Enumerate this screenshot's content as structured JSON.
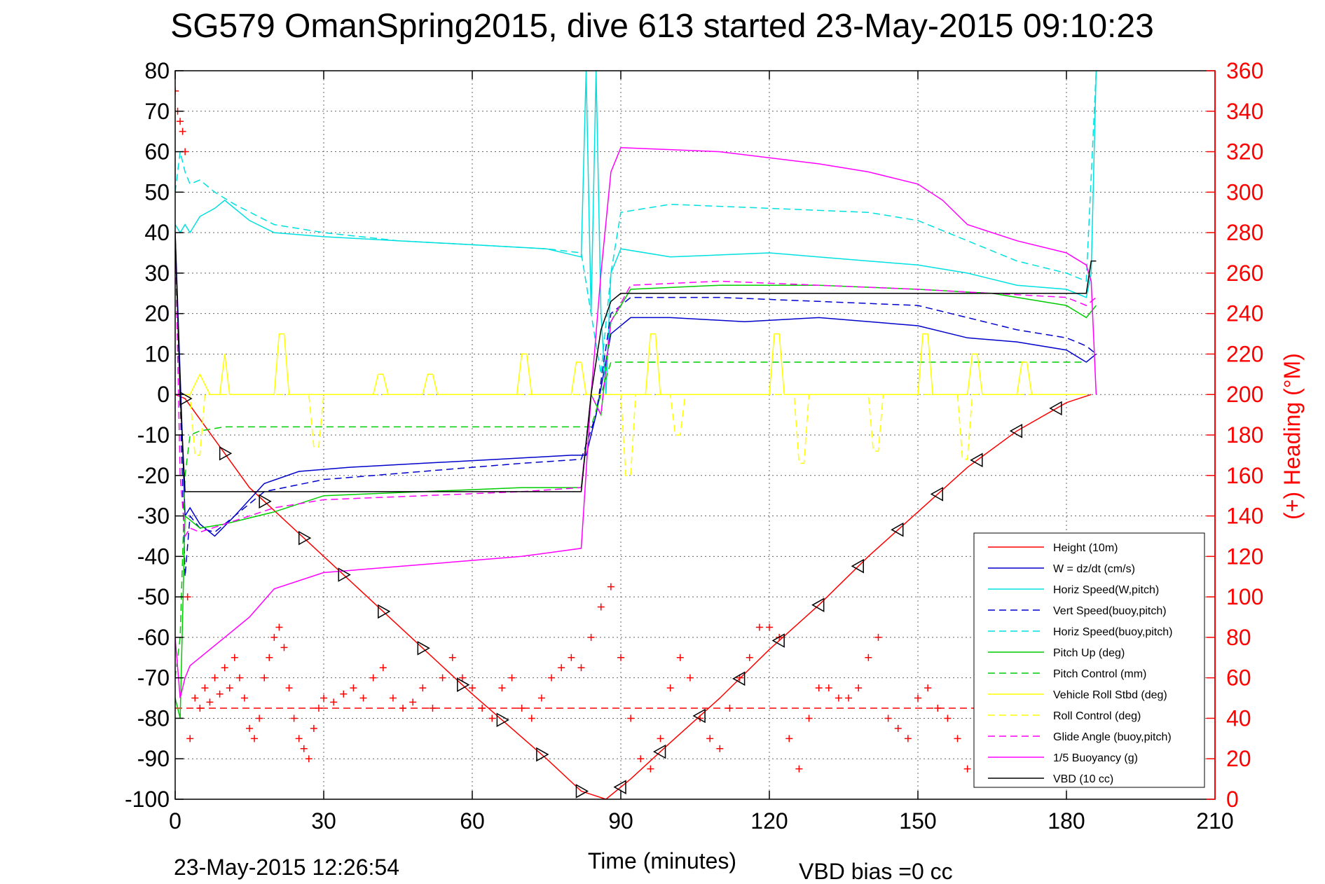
{
  "chart_data": {
    "type": "line",
    "title": "SG579 OmanSpring2015, dive 613 started 23-May-2015 09:10:23",
    "xlabel": "Time (minutes)",
    "ylabel": "",
    "y2label": "(+) Heading (°M)",
    "xlim": [
      0,
      210
    ],
    "ylim": [
      -100,
      80
    ],
    "y2lim": [
      0,
      360
    ],
    "x_ticks": [
      "0",
      "30",
      "60",
      "90",
      "120",
      "150",
      "180",
      "210"
    ],
    "y_ticks": [
      "80",
      "70",
      "60",
      "50",
      "40",
      "30",
      "20",
      "10",
      "0",
      "-10",
      "-20",
      "-30",
      "-40",
      "-50",
      "-60",
      "-70",
      "-80",
      "-90",
      "-100"
    ],
    "y2_ticks": [
      "360",
      "340",
      "320",
      "300",
      "280",
      "260",
      "240",
      "220",
      "200",
      "180",
      "160",
      "140",
      "120",
      "100",
      "80",
      "60",
      "40",
      "20",
      "0"
    ],
    "grid": true,
    "legend_position": "bottom-right",
    "footer_left": "23-May-2015 12:26:54",
    "footer_right": "VBD bias =0 cc",
    "colors": {
      "height": "#ff0000",
      "w": "#0000cc",
      "horiz_speed": "#00e0e0",
      "pitch": "#00cc00",
      "roll": "#ffff00",
      "glide": "#ff00ff",
      "buoyancy": "#ff00ff",
      "vbd": "#000000",
      "heading": "#ff0000"
    },
    "series": [
      {
        "name": "Height (10m)",
        "color": "#ff0000",
        "dash": "",
        "x": [
          0,
          2,
          15,
          30,
          45,
          60,
          75,
          82,
          87,
          92,
          100,
          110,
          120,
          130,
          140,
          150,
          160,
          170,
          180,
          185
        ],
        "y": [
          0,
          -1,
          -23,
          -40,
          -57,
          -74,
          -90,
          -98,
          -100,
          -95,
          -86,
          -75,
          -63,
          -52,
          -40,
          -29,
          -18,
          -9,
          -2,
          0
        ]
      },
      {
        "name": "W = dz/dt (cm/s)",
        "color": "#0000cc",
        "dash": "",
        "x": [
          0,
          1,
          2,
          3,
          5,
          8,
          12,
          18,
          25,
          35,
          50,
          65,
          80,
          83,
          85,
          88,
          92,
          100,
          115,
          130,
          150,
          160,
          170,
          180,
          184,
          186
        ],
        "y": [
          40,
          5,
          -30,
          -28,
          -32,
          -35,
          -30,
          -22,
          -19,
          -18,
          -17,
          -16,
          -15,
          -15,
          -5,
          15,
          19,
          19,
          18,
          19,
          17,
          14,
          13,
          11,
          8,
          10
        ]
      },
      {
        "name": "Horiz Speed(W,pitch)",
        "color": "#00e0e0",
        "dash": "",
        "x": [
          0,
          1,
          2,
          3,
          5,
          8,
          10,
          15,
          20,
          30,
          45,
          60,
          75,
          82,
          83,
          84,
          85,
          86,
          87,
          88,
          90,
          100,
          120,
          140,
          150,
          160,
          170,
          180,
          184,
          185,
          186
        ],
        "y": [
          42,
          40,
          42,
          40,
          44,
          46,
          48,
          43,
          40,
          39,
          38,
          37,
          36,
          34,
          80,
          20,
          80,
          20,
          0,
          30,
          36,
          34,
          35,
          33,
          32,
          30,
          27,
          26,
          24,
          30,
          80
        ]
      },
      {
        "name": "Vert Speed(buoy,pitch)",
        "color": "#0000cc",
        "dash": "10,6",
        "x": [
          0,
          1,
          2,
          3,
          5,
          8,
          12,
          18,
          30,
          50,
          70,
          82,
          85,
          88,
          92,
          110,
          130,
          150,
          160,
          170,
          180,
          184,
          186
        ],
        "y": [
          40,
          0,
          -45,
          -30,
          -33,
          -34,
          -30,
          -24,
          -21,
          -19,
          -17,
          -16,
          -5,
          20,
          24,
          24,
          23,
          22,
          19,
          16,
          14,
          12,
          10
        ]
      },
      {
        "name": "Horiz Speed(buoy,pitch)",
        "color": "#00e0e0",
        "dash": "10,6",
        "x": [
          0,
          1,
          2,
          3,
          5,
          8,
          12,
          20,
          30,
          45,
          60,
          75,
          82,
          84,
          86,
          88,
          90,
          100,
          120,
          140,
          150,
          160,
          170,
          180,
          184,
          186
        ],
        "y": [
          50,
          60,
          55,
          52,
          53,
          50,
          47,
          42,
          40,
          38,
          37,
          36,
          35,
          20,
          5,
          30,
          45,
          47,
          46,
          45,
          43,
          38,
          33,
          30,
          28,
          80
        ]
      },
      {
        "name": "Pitch Up (deg)",
        "color": "#00cc00",
        "dash": "",
        "x": [
          0,
          1,
          2,
          3,
          5,
          10,
          20,
          30,
          50,
          70,
          82,
          84,
          86,
          88,
          92,
          110,
          130,
          150,
          165,
          180,
          184,
          186
        ],
        "y": [
          -75,
          -80,
          -30,
          -31,
          -33,
          -32,
          -29,
          -25,
          -24,
          -23,
          -23,
          0,
          -5,
          18,
          26,
          27,
          27,
          26,
          25,
          22,
          19,
          22
        ]
      },
      {
        "name": "Pitch Control (mm)",
        "color": "#00cc00",
        "dash": "10,6",
        "x": [
          0,
          1,
          2,
          3,
          5,
          10,
          40,
          82,
          84,
          86,
          88,
          89,
          90,
          150,
          182,
          184
        ],
        "y": [
          -70,
          -60,
          -20,
          -10,
          -9,
          -8,
          -8,
          -8,
          -8,
          0,
          8,
          8,
          8,
          8,
          8,
          8
        ]
      },
      {
        "name": "Vehicle Roll Stbd (deg)",
        "color": "#ffff00",
        "dash": "",
        "x": [
          0,
          3,
          5,
          7,
          9,
          10,
          11,
          12,
          20,
          21,
          22,
          23,
          24,
          40,
          41,
          42,
          43,
          50,
          51,
          52,
          53,
          69,
          70,
          71,
          72,
          80,
          81,
          82,
          83,
          90,
          95,
          96,
          97,
          98,
          120,
          121,
          122,
          123,
          150,
          151,
          152,
          153,
          160,
          161,
          162,
          163,
          170,
          171,
          172,
          173,
          180,
          184
        ],
        "y": [
          0,
          0,
          5,
          0,
          0,
          10,
          0,
          0,
          0,
          15,
          15,
          0,
          0,
          0,
          5,
          5,
          0,
          0,
          5,
          5,
          0,
          0,
          10,
          10,
          0,
          0,
          8,
          8,
          0,
          0,
          0,
          15,
          15,
          0,
          0,
          15,
          15,
          0,
          0,
          15,
          15,
          0,
          0,
          10,
          10,
          0,
          0,
          8,
          8,
          0,
          0,
          0
        ]
      },
      {
        "name": "Roll Control (deg)",
        "color": "#ffff00",
        "dash": "10,6",
        "x": [
          0,
          3,
          4,
          5,
          6,
          27,
          28,
          29,
          30,
          90,
          91,
          92,
          93,
          100,
          101,
          102,
          103,
          125,
          126,
          127,
          128,
          140,
          141,
          142,
          143,
          158,
          159,
          160,
          161,
          170,
          184
        ],
        "y": [
          0,
          0,
          -15,
          -15,
          0,
          0,
          -13,
          -13,
          0,
          0,
          -20,
          -20,
          0,
          0,
          -10,
          -10,
          0,
          0,
          -17,
          -17,
          0,
          0,
          -14,
          -14,
          0,
          0,
          -16,
          -16,
          0,
          0,
          0
        ]
      },
      {
        "name": "Glide Angle (buoy,pitch)",
        "color": "#ff00ff",
        "dash": "10,6",
        "x": [
          0,
          1,
          2,
          3,
          5,
          10,
          20,
          30,
          50,
          70,
          82,
          84,
          86,
          88,
          92,
          110,
          130,
          150,
          165,
          180,
          184,
          186
        ],
        "y": [
          40,
          -20,
          -35,
          -33,
          -34,
          -32,
          -28,
          -26,
          -25,
          -24,
          -23,
          0,
          -5,
          18,
          27,
          28,
          27,
          26,
          25,
          24,
          22,
          24
        ]
      },
      {
        "name": "1/5 Buoyancy (g)",
        "color": "#ff00ff",
        "dash": "",
        "x": [
          0,
          1,
          2,
          3,
          5,
          10,
          15,
          20,
          30,
          50,
          70,
          82,
          84,
          86,
          88,
          90,
          110,
          130,
          140,
          150,
          155,
          160,
          170,
          180,
          184,
          185,
          186
        ],
        "y": [
          -60,
          -75,
          -70,
          -67,
          -65,
          -60,
          -55,
          -48,
          -44,
          -42,
          -40,
          -38,
          0,
          30,
          55,
          61,
          60,
          57,
          55,
          52,
          48,
          42,
          38,
          35,
          32,
          28,
          0
        ]
      },
      {
        "name": "VBD (10 cc)",
        "color": "#000000",
        "dash": "",
        "x": [
          0,
          1,
          2,
          3,
          4,
          10,
          50,
          82,
          84,
          86,
          88,
          89,
          90,
          110,
          183,
          184,
          185,
          186
        ],
        "y": [
          40,
          0,
          -24,
          -24,
          -24,
          -24,
          -24,
          -24,
          0,
          16,
          23,
          24,
          25,
          25,
          25,
          25,
          33,
          33
        ]
      },
      {
        "name": "(+) Heading (°M)",
        "color": "#ff0000",
        "dash": "",
        "axis": "y2",
        "marker": "plus",
        "x": [
          0,
          0.5,
          1,
          1.5,
          2,
          2.5,
          3,
          4,
          5,
          6,
          7,
          8,
          9,
          10,
          11,
          12,
          13,
          14,
          15,
          16,
          17,
          18,
          19,
          20,
          21,
          22,
          23,
          24,
          25,
          26,
          27,
          28,
          29,
          30,
          32,
          34,
          36,
          38,
          40,
          42,
          44,
          46,
          48,
          50,
          52,
          54,
          56,
          58,
          60,
          62,
          64,
          66,
          68,
          70,
          72,
          74,
          76,
          78,
          80,
          82,
          84,
          86,
          88,
          90,
          92,
          94,
          96,
          98,
          100,
          102,
          104,
          106,
          108,
          110,
          112,
          114,
          116,
          118,
          120,
          122,
          124,
          126,
          128,
          130,
          132,
          134,
          136,
          138,
          140,
          142,
          144,
          146,
          148,
          150,
          152,
          154,
          156,
          158,
          160,
          162,
          164,
          166,
          168,
          170,
          172,
          174,
          176,
          178,
          180,
          182,
          184
        ],
        "y": [
          350,
          340,
          335,
          330,
          320,
          100,
          30,
          50,
          45,
          55,
          48,
          60,
          52,
          65,
          55,
          70,
          60,
          50,
          35,
          30,
          40,
          60,
          70,
          80,
          85,
          75,
          55,
          40,
          30,
          25,
          20,
          35,
          45,
          50,
          48,
          52,
          55,
          50,
          60,
          65,
          50,
          45,
          48,
          55,
          45,
          60,
          70,
          60,
          55,
          45,
          40,
          55,
          60,
          45,
          40,
          50,
          60,
          65,
          70,
          65,
          80,
          95,
          105,
          70,
          40,
          20,
          15,
          30,
          55,
          70,
          60,
          40,
          30,
          25,
          45,
          60,
          70,
          85,
          85,
          80,
          30,
          15,
          40,
          55,
          55,
          50,
          50,
          55,
          70,
          80,
          40,
          35,
          30,
          50,
          55,
          45,
          40,
          30,
          15,
          35,
          40,
          25,
          30,
          35,
          40,
          45,
          60,
          70,
          80,
          40,
          35
        ]
      }
    ],
    "heading_ref": {
      "color": "#ff0000",
      "dash": "10,6",
      "y2": 45,
      "xlim": [
        0,
        185
      ]
    }
  }
}
